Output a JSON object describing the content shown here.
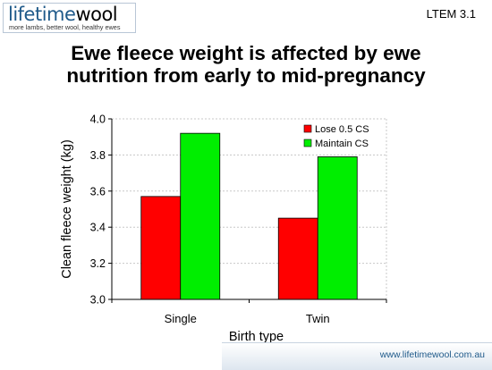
{
  "header": {
    "logo_part1": "lifetime",
    "logo_part2": "wool",
    "logo_tagline": "more lambs, better wool, healthy ewes",
    "slide_code": "LTEM 3.1"
  },
  "footer": {
    "url": "www.lifetimewool.com.au"
  },
  "colors": {
    "lose": "#ff0000",
    "maintain": "#00ee00",
    "axis": "#000000",
    "grid": "#c8c8c8"
  },
  "chart_data": {
    "type": "bar",
    "title": "Ewe fleece weight is affected by ewe nutrition from early to mid-pregnancy",
    "title_lines": [
      "Ewe fleece weight is affected by ewe",
      "nutrition from early to mid-pregnancy"
    ],
    "xlabel": "Birth type",
    "ylabel": "Clean fleece weight (kg)",
    "categories": [
      "Single",
      "Twin"
    ],
    "series": [
      {
        "name": "Lose 0.5 CS",
        "color": "#ff0000",
        "values": [
          3.57,
          3.45
        ]
      },
      {
        "name": "Maintain CS",
        "color": "#00ee00",
        "values": [
          3.92,
          3.79
        ]
      }
    ],
    "ylim": [
      3.0,
      4.0
    ],
    "yticks": [
      "3.0",
      "3.2",
      "3.4",
      "3.6",
      "3.8",
      "4.0"
    ],
    "grid": true,
    "legend": "top-right"
  }
}
